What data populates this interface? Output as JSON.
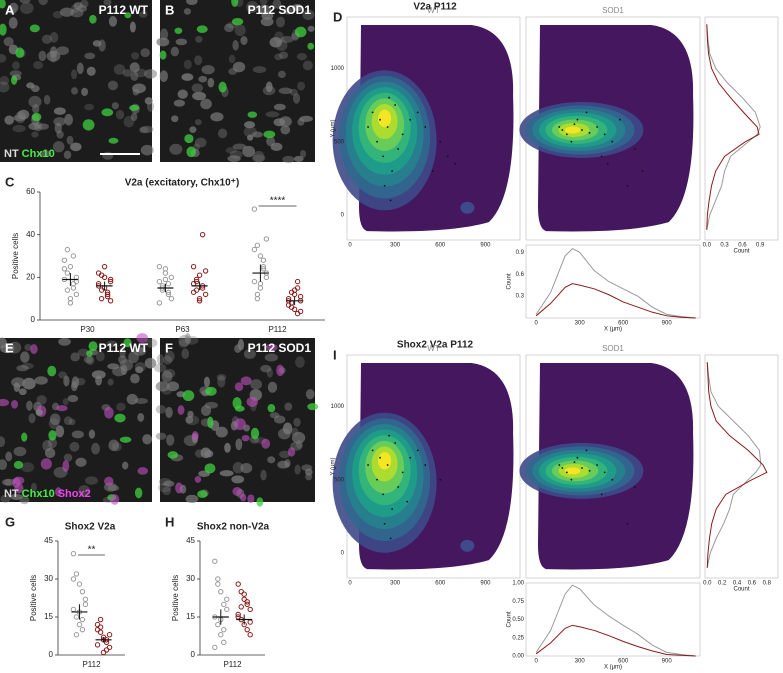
{
  "images": [
    {
      "letter": "A",
      "label": "P112 WT",
      "legend": [
        "NT",
        "Chx10"
      ]
    },
    {
      "letter": "B",
      "label": "P112 SOD1"
    },
    {
      "letter": "E",
      "label": "P112 WT",
      "legend": [
        "NT",
        "Chx10",
        "Shox2"
      ]
    },
    {
      "letter": "F",
      "label": "P112 SOD1"
    }
  ],
  "chart_data": [
    {
      "type": "strip",
      "letter": "C",
      "title": "V2a (excitatory, Chx10⁺)",
      "ylabel": "Positive cells",
      "categories": [
        "P30",
        "P63",
        "P112"
      ],
      "ylim": [
        0,
        60
      ],
      "yticks": [
        0,
        20,
        40,
        60
      ],
      "significance": [
        null,
        null,
        "****"
      ],
      "series": [
        {
          "color": "#9a9a9a",
          "values": [
            [
              19,
              22,
              25,
              15,
              12,
              28,
              33,
              10,
              17,
              20,
              24,
              14,
              8,
              30,
              18
            ],
            [
              18,
              15,
              22,
              12,
              10,
              25,
              16,
              19,
              13,
              20,
              8,
              14,
              24,
              17
            ],
            [
              52,
              35,
              30,
              25,
              22,
              18,
              12,
              15,
              28,
              20,
              33,
              10,
              17,
              24,
              38
            ]
          ],
          "mean": [
            19,
            15,
            22
          ],
          "sem": [
            3,
            2,
            4
          ]
        },
        {
          "color": "#8b1a1a",
          "values": [
            [
              16,
              14,
              20,
              12,
              18,
              22,
              10,
              25,
              13,
              9,
              17,
              21,
              15,
              11,
              19
            ],
            [
              17,
              14,
              21,
              40,
              12,
              25,
              19,
              10,
              16,
              23,
              13,
              18,
              9,
              15
            ],
            [
              9,
              6,
              12,
              15,
              4,
              10,
              8,
              14,
              3,
              11,
              7,
              13,
              5,
              18,
              9
            ]
          ],
          "mean": [
            16,
            16,
            9
          ],
          "sem": [
            2,
            2,
            2
          ]
        }
      ]
    },
    {
      "type": "strip",
      "letter": "G",
      "title": "Shox2 V2a",
      "ylabel": "Positive cells",
      "categories": [
        "P112"
      ],
      "ylim": [
        0,
        45
      ],
      "yticks": [
        0,
        15,
        30,
        45
      ],
      "significance": [
        "**"
      ],
      "series": [
        {
          "color": "#9a9a9a",
          "values": [
            [
              40,
              32,
              28,
              25,
              20,
              18,
              15,
              12,
              10,
              22,
              30,
              8,
              17,
              14
            ]
          ],
          "mean": [
            17
          ],
          "sem": [
            3
          ]
        },
        {
          "color": "#8b1a1a",
          "values": [
            [
              12,
              9,
              7,
              5,
              3,
              10,
              14,
              6,
              2,
              8,
              4,
              11,
              1,
              6
            ]
          ],
          "mean": [
            6
          ],
          "sem": [
            1
          ]
        }
      ]
    },
    {
      "type": "strip",
      "letter": "H",
      "title": "Shox2 non-V2a",
      "ylabel": "Positive cells",
      "categories": [
        "P112"
      ],
      "ylim": [
        0,
        45
      ],
      "yticks": [
        0,
        15,
        30,
        45
      ],
      "significance": [
        null
      ],
      "series": [
        {
          "color": "#9a9a9a",
          "values": [
            [
              37,
              30,
              25,
              20,
              18,
              15,
              12,
              8,
              5,
              22,
              3,
              28,
              14,
              10
            ]
          ],
          "mean": [
            15
          ],
          "sem": [
            3
          ]
        },
        {
          "color": "#8b1a1a",
          "values": [
            [
              28,
              25,
              22,
              20,
              18,
              15,
              14,
              12,
              10,
              8,
              16,
              19,
              24,
              21,
              13
            ]
          ],
          "mean": [
            14
          ],
          "sem": [
            2
          ]
        }
      ]
    },
    {
      "type": "kde",
      "letter": "D",
      "title": "V2a P112",
      "xlabel": "X (µm)",
      "ylabel": "Y (µm)",
      "xlim": [
        -20,
        1130
      ],
      "ylim": [
        -170,
        1350
      ],
      "xticks": [
        0,
        300,
        600,
        900
      ],
      "yticks": [
        0,
        500,
        1000
      ],
      "panels": [
        {
          "title": "WT",
          "peak": {
            "x": 230,
            "y": 680
          },
          "cells": {
            "x": [
              150,
              200,
              250,
              300,
              350,
              180,
              220,
              280,
              400,
              500,
              600,
              650,
              700,
              120,
              260,
              320,
              450,
              550,
              230,
              270
            ],
            "y": [
              700,
              650,
              600,
              750,
              550,
              500,
              400,
              300,
              650,
              600,
              500,
              400,
              350,
              600,
              800,
              450,
              700,
              300,
              200,
              100
            ]
          }
        },
        {
          "title": "SOD1",
          "peak": {
            "x": 280,
            "y": 580
          },
          "cells": {
            "x": [
              200,
              250,
              300,
              350,
              400,
              450,
              500,
              550,
              600,
              280,
              320,
              380,
              700,
              750,
              650,
              220,
              480,
              520
            ],
            "y": [
              600,
              550,
              620,
              580,
              560,
              600,
              550,
              500,
              650,
              500,
              650,
              700,
              450,
              300,
              200,
              580,
              400,
              350
            ]
          }
        }
      ],
      "y_margin": {
        "xlabel": "Count",
        "xlim": [
          -0.03,
          1.2
        ],
        "xticks": [
          {
            "value": 0,
            "label": "0.0"
          },
          0.3,
          0.6,
          0.9
        ],
        "y": [
          1300,
          1200,
          1100,
          1000,
          900,
          800,
          700,
          600,
          550,
          500,
          400,
          300,
          200,
          100,
          0,
          -100
        ],
        "series": [
          {
            "color": "#9a9a9a",
            "values": [
              0,
              0.02,
              0.05,
              0.15,
              0.35,
              0.6,
              0.82,
              0.9,
              0.85,
              0.7,
              0.4,
              0.3,
              0.25,
              0.15,
              0.05,
              0
            ]
          },
          {
            "color": "#8b1a1a",
            "values": [
              0,
              0.01,
              0.03,
              0.08,
              0.2,
              0.4,
              0.62,
              0.85,
              0.88,
              0.65,
              0.3,
              0.15,
              0.08,
              0.04,
              0.01,
              0
            ]
          }
        ]
      },
      "x_margin": {
        "xlabel": "X (µm)",
        "ylabel": "Count",
        "xlim": [
          -70,
          1130
        ],
        "xticks": [
          0,
          300,
          600,
          900
        ],
        "ylim": [
          0,
          1.0
        ],
        "yticks": [
          0.3,
          0.6,
          0.9
        ],
        "x": [
          0,
          100,
          200,
          250,
          300,
          400,
          500,
          600,
          700,
          800,
          900,
          1000,
          1100
        ],
        "series": [
          {
            "color": "#9a9a9a",
            "values": [
              0.05,
              0.35,
              0.85,
              0.95,
              0.9,
              0.65,
              0.5,
              0.4,
              0.3,
              0.15,
              0.05,
              0.02,
              0
            ]
          },
          {
            "color": "#8b1a1a",
            "values": [
              0.03,
              0.2,
              0.42,
              0.47,
              0.45,
              0.4,
              0.32,
              0.22,
              0.15,
              0.08,
              0.03,
              0.01,
              0
            ]
          }
        ]
      }
    },
    {
      "type": "kde",
      "letter": "I",
      "title": "Shox2 V2a P112",
      "xlabel": "X (µm)",
      "ylabel": "Y (µm)",
      "xlim": [
        -20,
        1130
      ],
      "ylim": [
        -170,
        1350
      ],
      "xticks": [
        0,
        300,
        600,
        900
      ],
      "yticks": [
        0,
        500,
        1000
      ],
      "panels": [
        {
          "title": "WT",
          "peak": {
            "x": 230,
            "y": 650
          },
          "cells": {
            "x": [
              150,
              200,
              250,
              300,
              350,
              180,
              220,
              280,
              400,
              500,
              600,
              120,
              260,
              320,
              450,
              230,
              270,
              380
            ],
            "y": [
              700,
              650,
              600,
              750,
              550,
              500,
              400,
              300,
              650,
              600,
              500,
              600,
              800,
              450,
              700,
              200,
              100,
              350
            ]
          }
        },
        {
          "title": "SOD1",
          "peak": {
            "x": 280,
            "y": 560
          },
          "cells": {
            "x": [
              200,
              250,
              300,
              350,
              400,
              450,
              500,
              550,
              280,
              320,
              380,
              700,
              650,
              220,
              480
            ],
            "y": [
              600,
              550,
              620,
              580,
              560,
              600,
              550,
              500,
              500,
              650,
              700,
              450,
              200,
              580,
              400
            ]
          }
        }
      ],
      "y_margin": {
        "xlabel": "Count",
        "xlim": [
          -0.03,
          0.95
        ],
        "xticks": [
          {
            "value": 0,
            "label": "0.0"
          },
          0.2,
          0.4,
          0.6,
          0.8
        ],
        "y": [
          1300,
          1200,
          1100,
          1000,
          900,
          800,
          700,
          600,
          550,
          500,
          400,
          300,
          200,
          100,
          0,
          -100
        ],
        "series": [
          {
            "color": "#9a9a9a",
            "values": [
              0,
              0.02,
              0.05,
              0.15,
              0.35,
              0.55,
              0.7,
              0.72,
              0.65,
              0.55,
              0.35,
              0.3,
              0.22,
              0.12,
              0.04,
              0
            ]
          },
          {
            "color": "#8b1a1a",
            "values": [
              0,
              0.01,
              0.02,
              0.05,
              0.12,
              0.3,
              0.55,
              0.75,
              0.8,
              0.6,
              0.25,
              0.12,
              0.06,
              0.03,
              0.01,
              0
            ]
          }
        ]
      },
      "x_margin": {
        "xlabel": "X (µm)",
        "ylabel": "Count",
        "xlim": [
          -70,
          1130
        ],
        "xticks": [
          0,
          300,
          600,
          900
        ],
        "ylim": [
          0,
          1.0
        ],
        "yticks": [
          {
            "value": 0,
            "label": "0.00"
          },
          0.25,
          {
            "value": 0.5,
            "label": "0.50"
          },
          0.75,
          {
            "value": 1,
            "label": "1.00"
          }
        ],
        "x": [
          0,
          100,
          200,
          250,
          300,
          400,
          500,
          600,
          700,
          800,
          900,
          1000,
          1100
        ],
        "series": [
          {
            "color": "#9a9a9a",
            "values": [
              0.05,
              0.35,
              0.85,
              0.97,
              0.92,
              0.7,
              0.55,
              0.42,
              0.3,
              0.15,
              0.05,
              0.02,
              0
            ]
          },
          {
            "color": "#8b1a1a",
            "values": [
              0.03,
              0.18,
              0.38,
              0.42,
              0.4,
              0.35,
              0.28,
              0.2,
              0.13,
              0.07,
              0.02,
              0.01,
              0
            ]
          }
        ]
      }
    }
  ]
}
